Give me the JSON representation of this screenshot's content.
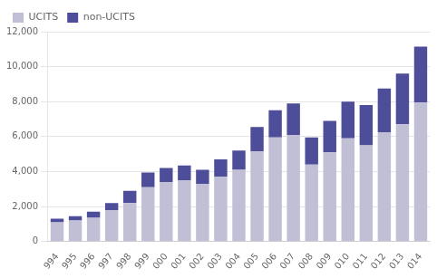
{
  "chart_data": {
    "type": "bar",
    "stacked": true,
    "categories": [
      "994",
      "995",
      "996",
      "997",
      "998",
      "999",
      "000",
      "001",
      "002",
      "003",
      "004",
      "005",
      "006",
      "007",
      "008",
      "009",
      "010",
      "011",
      "012",
      "013",
      "014"
    ],
    "series": [
      {
        "name": "UCITS",
        "color": "#c0bfd6",
        "values": [
          1100,
          1200,
          1350,
          1800,
          2200,
          3100,
          3400,
          3500,
          3300,
          3700,
          4100,
          5150,
          5950,
          6100,
          4400,
          5100,
          5900,
          5500,
          6250,
          6700,
          7950
        ]
      },
      {
        "name": "non-UCITS",
        "color": "#4d4d99",
        "values": [
          200,
          250,
          350,
          400,
          700,
          850,
          800,
          850,
          800,
          1000,
          1100,
          1400,
          1550,
          1800,
          1550,
          1800,
          2100,
          2300,
          2500,
          2900,
          3200
        ]
      }
    ],
    "ylim": [
      0,
      12000
    ],
    "yticks": [
      0,
      {
        "value": 2000,
        "label": "2,000"
      },
      {
        "value": 4000,
        "label": "4,000"
      },
      {
        "value": 6000,
        "label": "6,000"
      },
      {
        "value": 8000,
        "label": "8,000"
      },
      {
        "value": 10000,
        "label": "10,000"
      },
      {
        "value": 12000,
        "label": "12,000"
      }
    ],
    "grid": true,
    "legend": "upper left"
  }
}
